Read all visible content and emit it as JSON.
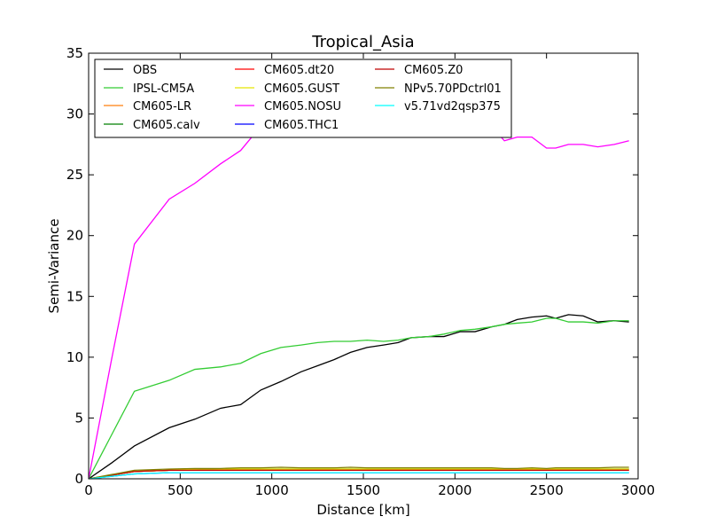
{
  "chart_data": {
    "type": "line",
    "title": "Tropical_Asia",
    "xlabel": "Distance [km]",
    "ylabel": "Semi-Variance",
    "xlim": [
      0,
      3000
    ],
    "ylim": [
      0,
      35
    ],
    "xticks": [
      0,
      500,
      1000,
      1500,
      2000,
      2500,
      3000
    ],
    "yticks": [
      0,
      5,
      10,
      15,
      20,
      25,
      30,
      35
    ],
    "grid": false,
    "legend_position": "top-left",
    "legend_columns": 3,
    "x": [
      0,
      125,
      250,
      440,
      580,
      720,
      830,
      940,
      1050,
      1160,
      1250,
      1340,
      1430,
      1520,
      1610,
      1690,
      1760,
      1860,
      1940,
      2030,
      2110,
      2200,
      2270,
      2340,
      2420,
      2500,
      2550,
      2620,
      2700,
      2780,
      2870,
      2950
    ],
    "series": [
      {
        "name": "OBS",
        "color": "#000000",
        "values": [
          0,
          1.3,
          2.7,
          4.2,
          4.9,
          5.8,
          6.1,
          7.3,
          8.0,
          8.8,
          9.3,
          9.8,
          10.4,
          10.8,
          11.0,
          11.2,
          11.6,
          11.7,
          11.7,
          12.1,
          12.1,
          12.5,
          12.7,
          13.1,
          13.3,
          13.4,
          13.2,
          13.5,
          13.4,
          12.9,
          13.0,
          12.9
        ]
      },
      {
        "name": "IPSL-CM5A",
        "color": "#33cc33",
        "values": [
          0,
          3.6,
          7.2,
          8.1,
          9.0,
          9.2,
          9.5,
          10.3,
          10.8,
          11.0,
          11.2,
          11.3,
          11.3,
          11.4,
          11.3,
          11.4,
          11.6,
          11.7,
          11.9,
          12.2,
          12.3,
          12.5,
          12.7,
          12.8,
          12.9,
          13.2,
          13.2,
          12.9,
          12.9,
          12.8,
          13.0,
          13.0
        ]
      },
      {
        "name": "CM605-LR",
        "color": "#ff7f0e",
        "values": [
          0,
          0.3,
          0.6,
          0.7,
          0.7,
          0.7,
          0.7,
          0.7,
          0.7,
          0.7,
          0.7,
          0.7,
          0.7,
          0.7,
          0.7,
          0.7,
          0.7,
          0.7,
          0.7,
          0.7,
          0.7,
          0.7,
          0.7,
          0.7,
          0.7,
          0.7,
          0.7,
          0.7,
          0.7,
          0.7,
          0.7,
          0.7
        ]
      },
      {
        "name": "CM605.calv",
        "color": "#007f00",
        "values": [
          0,
          0.3,
          0.6,
          0.7,
          0.7,
          0.8,
          0.8,
          0.8,
          0.8,
          0.8,
          0.8,
          0.8,
          0.8,
          0.8,
          0.8,
          0.8,
          0.8,
          0.8,
          0.8,
          0.8,
          0.8,
          0.8,
          0.8,
          0.8,
          0.8,
          0.8,
          0.8,
          0.8,
          0.8,
          0.8,
          0.8,
          0.8
        ]
      },
      {
        "name": "CM605.dt20",
        "color": "#ff0000",
        "values": [
          0,
          0.3,
          0.6,
          0.7,
          0.7,
          0.7,
          0.7,
          0.7,
          0.7,
          0.7,
          0.7,
          0.7,
          0.7,
          0.7,
          0.7,
          0.7,
          0.7,
          0.7,
          0.7,
          0.7,
          0.7,
          0.7,
          0.7,
          0.7,
          0.7,
          0.7,
          0.7,
          0.7,
          0.7,
          0.7,
          0.7,
          0.7
        ]
      },
      {
        "name": "CM605.GUST",
        "color": "#e5e500",
        "values": [
          0,
          0.3,
          0.6,
          0.7,
          0.8,
          0.8,
          0.8,
          0.8,
          0.8,
          0.8,
          0.8,
          0.8,
          0.8,
          0.8,
          0.8,
          0.8,
          0.8,
          0.8,
          0.8,
          0.8,
          0.8,
          0.8,
          0.8,
          0.8,
          0.8,
          0.8,
          0.8,
          0.8,
          0.8,
          0.8,
          0.8,
          0.8
        ]
      },
      {
        "name": "CM605.NOSU",
        "color": "#ff00ff",
        "values": [
          0,
          9.8,
          19.3,
          23.0,
          24.3,
          25.9,
          27.0,
          29.0,
          29.0,
          29.0,
          29.0,
          29.0,
          29.0,
          29.0,
          29.0,
          29.0,
          29.0,
          29.0,
          29.0,
          29.0,
          29.0,
          29.0,
          27.8,
          28.1,
          28.1,
          27.2,
          27.2,
          27.5,
          27.5,
          27.3,
          27.5,
          27.8
        ]
      },
      {
        "name": "CM605.THC1",
        "color": "#0000ff",
        "values": [
          0,
          0.2,
          0.4,
          0.5,
          0.5,
          0.5,
          0.5,
          0.5,
          0.5,
          0.5,
          0.5,
          0.5,
          0.5,
          0.5,
          0.5,
          0.5,
          0.5,
          0.5,
          0.5,
          0.5,
          0.5,
          0.5,
          0.5,
          0.5,
          0.5,
          0.5,
          0.5,
          0.5,
          0.5,
          0.5,
          0.5,
          0.5
        ]
      },
      {
        "name": "CM605.Z0",
        "color": "#bf0000",
        "values": [
          0,
          0.3,
          0.6,
          0.7,
          0.7,
          0.7,
          0.7,
          0.7,
          0.7,
          0.7,
          0.7,
          0.7,
          0.7,
          0.7,
          0.7,
          0.7,
          0.7,
          0.7,
          0.7,
          0.7,
          0.7,
          0.7,
          0.7,
          0.7,
          0.7,
          0.7,
          0.7,
          0.7,
          0.7,
          0.7,
          0.7,
          0.7
        ]
      },
      {
        "name": "NPv5.70PDctrl01",
        "color": "#808000",
        "values": [
          0,
          0.35,
          0.7,
          0.8,
          0.85,
          0.85,
          0.9,
          0.9,
          0.95,
          0.9,
          0.9,
          0.9,
          0.95,
          0.9,
          0.9,
          0.9,
          0.9,
          0.9,
          0.9,
          0.9,
          0.9,
          0.9,
          0.85,
          0.85,
          0.9,
          0.85,
          0.9,
          0.9,
          0.9,
          0.9,
          0.95,
          0.95
        ]
      },
      {
        "name": "v5.71vd2qsp375",
        "color": "#00ffff",
        "values": [
          0,
          0.2,
          0.4,
          0.5,
          0.5,
          0.5,
          0.5,
          0.5,
          0.5,
          0.5,
          0.5,
          0.5,
          0.5,
          0.5,
          0.5,
          0.5,
          0.5,
          0.5,
          0.5,
          0.5,
          0.5,
          0.5,
          0.5,
          0.5,
          0.5,
          0.5,
          0.5,
          0.5,
          0.5,
          0.5,
          0.5,
          0.5
        ]
      }
    ]
  }
}
